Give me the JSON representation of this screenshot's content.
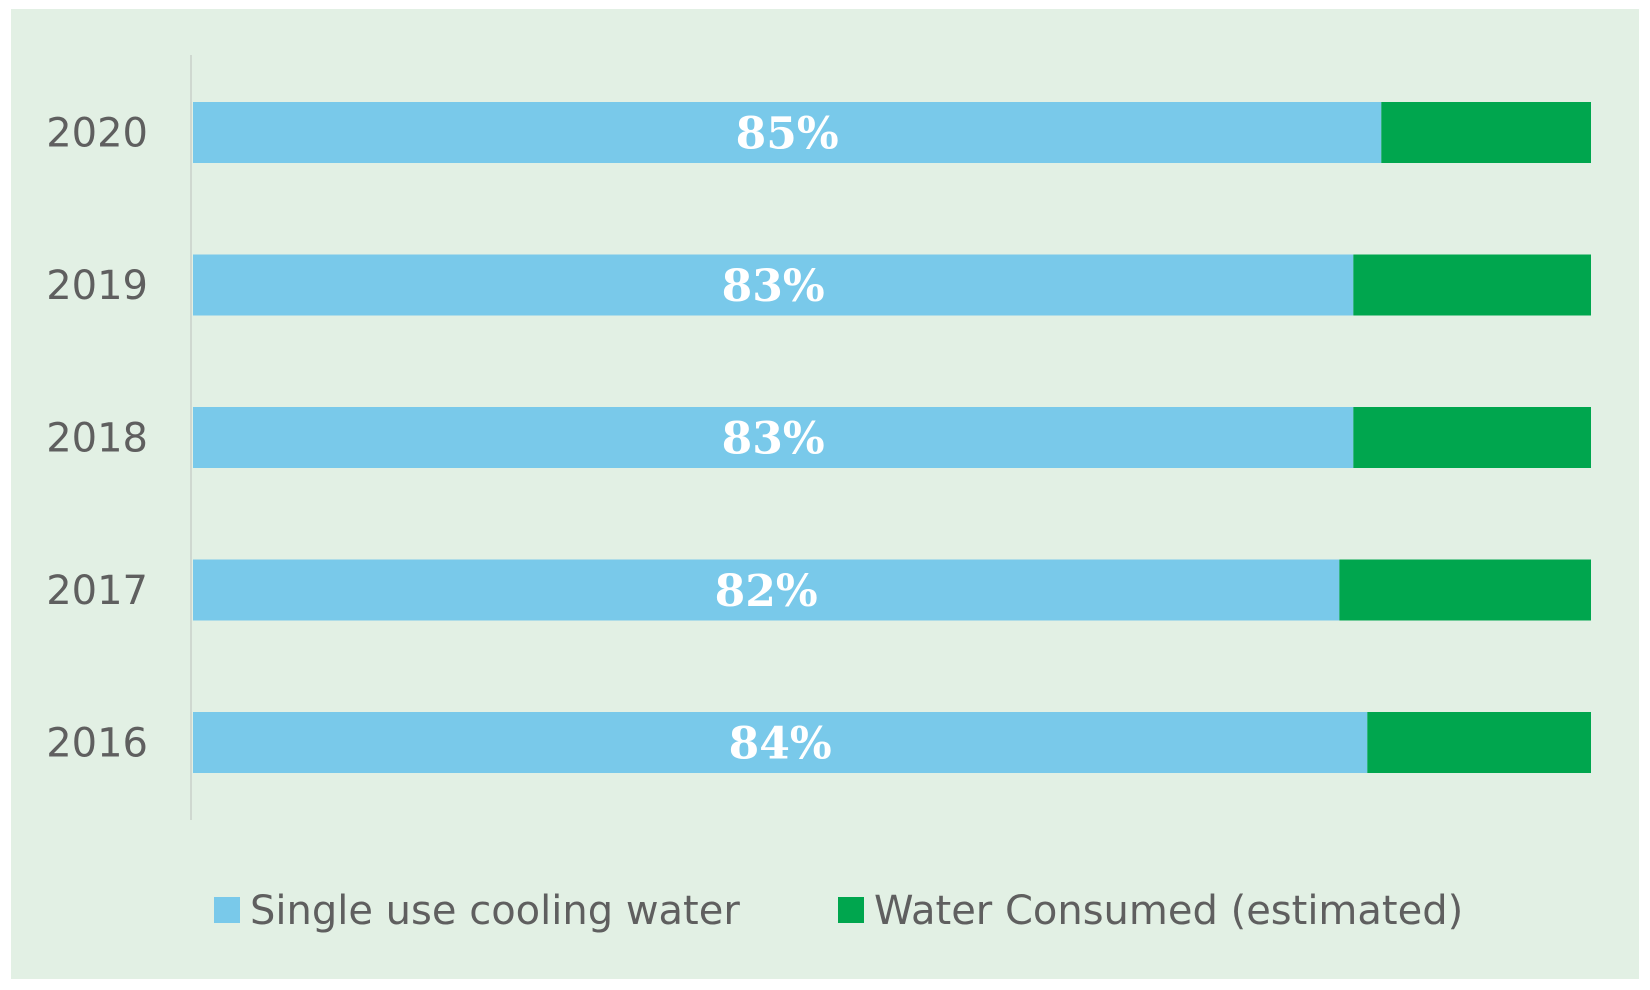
{
  "chart_data": {
    "type": "bar",
    "orientation": "horizontal",
    "stacked": true,
    "normalized_to_percent": true,
    "categories": [
      "2020",
      "2019",
      "2018",
      "2017",
      "2016"
    ],
    "series": [
      {
        "name": "Single use cooling water",
        "color": "#79c9ea",
        "values": [
          85,
          83,
          83,
          82,
          84
        ],
        "labels": [
          "85%",
          "83%",
          "83%",
          "82%",
          "84%"
        ]
      },
      {
        "name": "Water Consumed (estimated)",
        "color": "#00a64e",
        "values": [
          15,
          17,
          17,
          18,
          16
        ]
      }
    ],
    "xlim": [
      0,
      100
    ],
    "grid": false,
    "legend_position": "bottom",
    "title": "",
    "xlabel": "",
    "ylabel": ""
  },
  "colors": {
    "background": "#e2f0e4",
    "axis": "#cfd8d0",
    "text": "#5f5f5f"
  }
}
